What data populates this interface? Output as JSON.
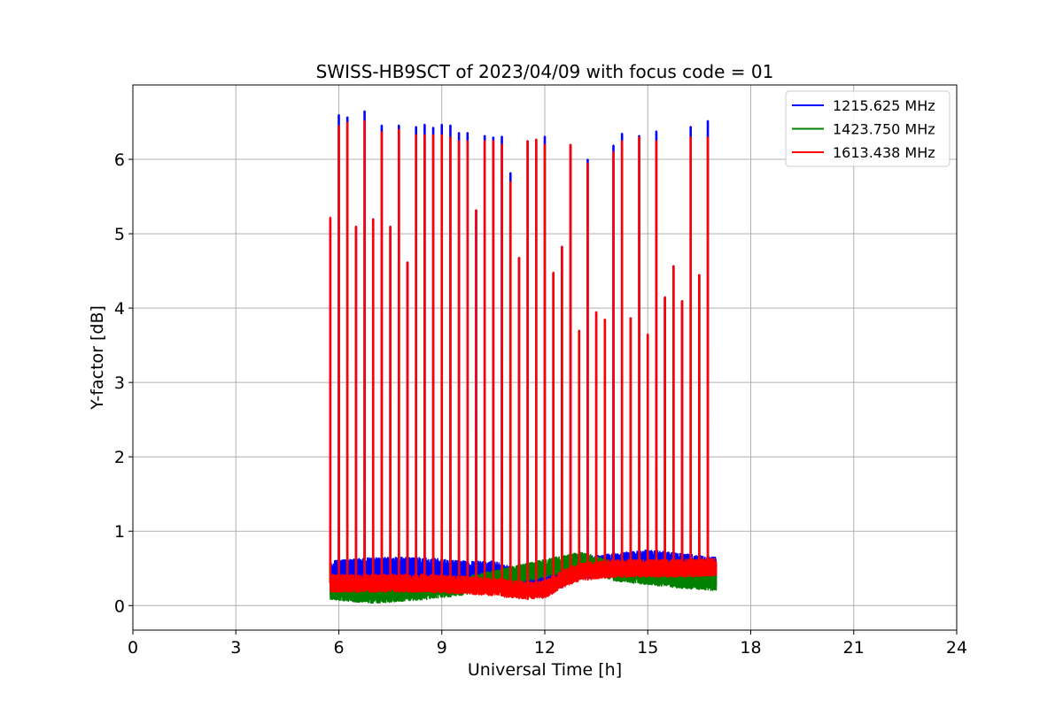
{
  "chart_data": {
    "type": "line",
    "title": "SWISS-HB9SCT of 2023/04/09 with focus code = 01",
    "xlabel": "Universal Time [h]",
    "ylabel": "Y-factor [dB]",
    "xlim": [
      0,
      24
    ],
    "ylim": [
      -0.33,
      7.0
    ],
    "xticks": [
      0,
      3,
      6,
      9,
      12,
      15,
      18,
      21,
      24
    ],
    "yticks": [
      0,
      1,
      2,
      3,
      4,
      5,
      6
    ],
    "grid": true,
    "legend_position": "top-right",
    "data_range": [
      5.75,
      17.0
    ],
    "series": [
      {
        "name": "1215.625 MHz",
        "color": "#0000ff",
        "baseline": [
          [
            5.75,
            0.45
          ],
          [
            7.0,
            0.5
          ],
          [
            8.5,
            0.5
          ],
          [
            9.5,
            0.45
          ],
          [
            10.5,
            0.45
          ],
          [
            11.5,
            0.3
          ],
          [
            12.0,
            0.25
          ],
          [
            12.5,
            0.4
          ],
          [
            13.0,
            0.5
          ],
          [
            14.0,
            0.55
          ],
          [
            15.0,
            0.6
          ],
          [
            16.0,
            0.55
          ],
          [
            17.0,
            0.5
          ]
        ],
        "noise": 0.15,
        "peaks": [
          [
            5.75,
            5.2
          ],
          [
            6.0,
            6.6
          ],
          [
            6.25,
            6.57
          ],
          [
            6.5,
            5.1
          ],
          [
            6.75,
            6.65
          ],
          [
            7.0,
            5.2
          ],
          [
            7.25,
            6.46
          ],
          [
            7.5,
            5.1
          ],
          [
            7.75,
            6.46
          ],
          [
            8.0,
            4.62
          ],
          [
            8.25,
            6.44
          ],
          [
            8.5,
            6.47
          ],
          [
            8.75,
            6.43
          ],
          [
            9.0,
            6.47
          ],
          [
            9.25,
            6.46
          ],
          [
            9.5,
            6.36
          ],
          [
            9.75,
            6.36
          ],
          [
            10.0,
            5.32
          ],
          [
            10.25,
            6.32
          ],
          [
            10.5,
            6.3
          ],
          [
            10.75,
            6.31
          ],
          [
            11.0,
            5.82
          ],
          [
            11.25,
            4.68
          ],
          [
            11.5,
            6.25
          ],
          [
            11.75,
            6.27
          ],
          [
            12.0,
            6.31
          ],
          [
            12.25,
            4.48
          ],
          [
            12.5,
            4.83
          ],
          [
            12.75,
            6.2
          ],
          [
            13.0,
            3.7
          ],
          [
            13.25,
            6.0
          ],
          [
            13.5,
            3.95
          ],
          [
            13.75,
            3.85
          ],
          [
            14.0,
            6.19
          ],
          [
            14.25,
            6.35
          ],
          [
            14.5,
            3.87
          ],
          [
            14.75,
            6.32
          ],
          [
            15.0,
            3.65
          ],
          [
            15.25,
            6.38
          ],
          [
            15.5,
            4.15
          ],
          [
            15.75,
            4.57
          ],
          [
            16.0,
            4.1
          ],
          [
            16.25,
            6.44
          ],
          [
            16.5,
            4.45
          ],
          [
            16.75,
            6.52
          ]
        ]
      },
      {
        "name": "1423.750 MHz",
        "color": "#008000",
        "baseline": [
          [
            5.75,
            0.2
          ],
          [
            7.0,
            0.15
          ],
          [
            8.5,
            0.2
          ],
          [
            9.5,
            0.25
          ],
          [
            10.5,
            0.35
          ],
          [
            11.5,
            0.45
          ],
          [
            12.0,
            0.5
          ],
          [
            12.5,
            0.55
          ],
          [
            13.0,
            0.6
          ],
          [
            13.5,
            0.55
          ],
          [
            14.0,
            0.45
          ],
          [
            15.0,
            0.4
          ],
          [
            16.0,
            0.35
          ],
          [
            17.0,
            0.32
          ]
        ],
        "noise": 0.12,
        "peaks": []
      },
      {
        "name": "1613.438 MHz",
        "color": "#ff0000",
        "baseline": [
          [
            5.75,
            0.3
          ],
          [
            7.0,
            0.3
          ],
          [
            8.5,
            0.3
          ],
          [
            9.5,
            0.28
          ],
          [
            10.5,
            0.25
          ],
          [
            11.5,
            0.2
          ],
          [
            12.0,
            0.22
          ],
          [
            12.5,
            0.35
          ],
          [
            13.0,
            0.45
          ],
          [
            14.0,
            0.5
          ],
          [
            15.0,
            0.5
          ],
          [
            16.0,
            0.5
          ],
          [
            17.0,
            0.52
          ]
        ],
        "noise": 0.12,
        "peaks": [
          [
            5.75,
            5.22
          ],
          [
            6.0,
            6.45
          ],
          [
            6.25,
            6.5
          ],
          [
            6.5,
            5.1
          ],
          [
            6.75,
            6.52
          ],
          [
            7.0,
            5.2
          ],
          [
            7.25,
            6.37
          ],
          [
            7.5,
            5.1
          ],
          [
            7.75,
            6.4
          ],
          [
            8.0,
            4.62
          ],
          [
            8.25,
            6.33
          ],
          [
            8.5,
            6.33
          ],
          [
            8.75,
            6.33
          ],
          [
            9.0,
            6.33
          ],
          [
            9.25,
            6.3
          ],
          [
            9.5,
            6.25
          ],
          [
            9.75,
            6.25
          ],
          [
            10.0,
            5.32
          ],
          [
            10.25,
            6.25
          ],
          [
            10.5,
            6.25
          ],
          [
            10.75,
            6.2
          ],
          [
            11.0,
            5.7
          ],
          [
            11.25,
            4.68
          ],
          [
            11.5,
            6.25
          ],
          [
            11.75,
            6.27
          ],
          [
            12.0,
            6.2
          ],
          [
            12.25,
            4.48
          ],
          [
            12.5,
            4.83
          ],
          [
            12.75,
            6.2
          ],
          [
            13.0,
            3.7
          ],
          [
            13.25,
            5.95
          ],
          [
            13.5,
            3.95
          ],
          [
            13.75,
            3.85
          ],
          [
            14.0,
            6.1
          ],
          [
            14.25,
            6.25
          ],
          [
            14.5,
            3.87
          ],
          [
            14.75,
            6.3
          ],
          [
            15.0,
            3.65
          ],
          [
            15.25,
            6.25
          ],
          [
            15.5,
            4.15
          ],
          [
            15.75,
            4.57
          ],
          [
            16.0,
            4.1
          ],
          [
            16.25,
            6.3
          ],
          [
            16.5,
            4.45
          ],
          [
            16.75,
            6.3
          ]
        ]
      }
    ]
  }
}
